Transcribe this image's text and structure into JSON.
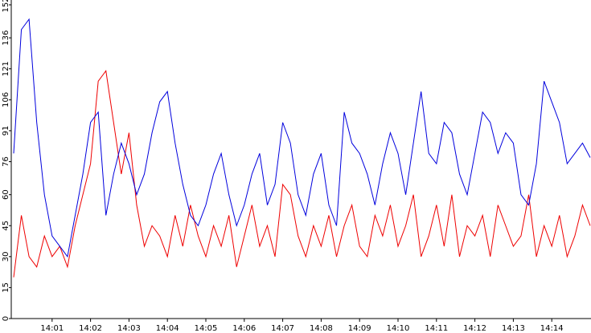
{
  "chart_data": {
    "type": "line",
    "x": [
      0,
      0.2,
      0.4,
      0.6,
      0.8,
      1,
      1.2,
      1.4,
      1.6,
      1.8,
      2,
      2.2,
      2.4,
      2.6,
      2.8,
      3,
      3.2,
      3.4,
      3.6,
      3.8,
      4,
      4.2,
      4.4,
      4.6,
      4.8,
      5,
      5.2,
      5.4,
      5.6,
      5.8,
      6,
      6.2,
      6.4,
      6.6,
      6.8,
      7,
      7.2,
      7.4,
      7.6,
      7.8,
      8,
      8.2,
      8.4,
      8.6,
      8.8,
      9,
      9.2,
      9.4,
      9.6,
      9.8,
      10,
      10.2,
      10.4,
      10.6,
      10.8,
      11,
      11.2,
      11.4,
      11.6,
      11.8,
      12,
      12.2,
      12.4,
      12.6,
      12.8,
      13,
      13.2,
      13.4,
      13.6,
      13.8,
      14,
      14.2,
      14.4,
      14.6,
      14.8,
      15
    ],
    "series": [
      {
        "color": "#0000dd",
        "values": [
          80,
          140,
          145,
          95,
          60,
          40,
          35,
          30,
          50,
          70,
          95,
          100,
          50,
          70,
          85,
          75,
          60,
          70,
          90,
          105,
          110,
          85,
          65,
          50,
          45,
          55,
          70,
          80,
          60,
          45,
          55,
          70,
          80,
          55,
          65,
          95,
          85,
          60,
          50,
          70,
          80,
          55,
          45,
          100,
          85,
          80,
          70,
          55,
          75,
          90,
          80,
          60,
          85,
          110,
          80,
          75,
          95,
          90,
          70,
          60,
          80,
          100,
          95,
          80,
          90,
          85,
          60,
          55,
          75,
          115,
          105,
          95,
          75,
          80,
          85,
          78
        ]
      },
      {
        "color": "#ee0000",
        "values": [
          20,
          50,
          30,
          25,
          40,
          30,
          35,
          25,
          45,
          60,
          75,
          115,
          120,
          95,
          70,
          90,
          55,
          35,
          45,
          40,
          30,
          50,
          35,
          55,
          40,
          30,
          45,
          35,
          50,
          25,
          40,
          55,
          35,
          45,
          30,
          65,
          60,
          40,
          30,
          45,
          35,
          50,
          30,
          45,
          55,
          35,
          30,
          50,
          40,
          55,
          35,
          45,
          60,
          30,
          40,
          55,
          35,
          60,
          30,
          45,
          40,
          50,
          30,
          55,
          45,
          35,
          40,
          60,
          30,
          45,
          35,
          50,
          30,
          40,
          55,
          45
        ]
      }
    ],
    "xlim": [
      0,
      15
    ],
    "xticks": [
      {
        "value": 1,
        "label": "14:01"
      },
      {
        "value": 2,
        "label": "14:02"
      },
      {
        "value": 3,
        "label": "14:03"
      },
      {
        "value": 4,
        "label": "14:04"
      },
      {
        "value": 5,
        "label": "14:05"
      },
      {
        "value": 6,
        "label": "14:06"
      },
      {
        "value": 7,
        "label": "14:07"
      },
      {
        "value": 8,
        "label": "14:08"
      },
      {
        "value": 9,
        "label": "14:09"
      },
      {
        "value": 10,
        "label": "14:10"
      },
      {
        "value": 11,
        "label": "14:11"
      },
      {
        "value": 12,
        "label": "14:12"
      },
      {
        "value": 13,
        "label": "14:13"
      },
      {
        "value": 14,
        "label": "14:14"
      }
    ],
    "ylim": [
      0,
      152
    ],
    "yticks": [
      0,
      15,
      30,
      45,
      60,
      76,
      91,
      106,
      121,
      136,
      152
    ]
  }
}
